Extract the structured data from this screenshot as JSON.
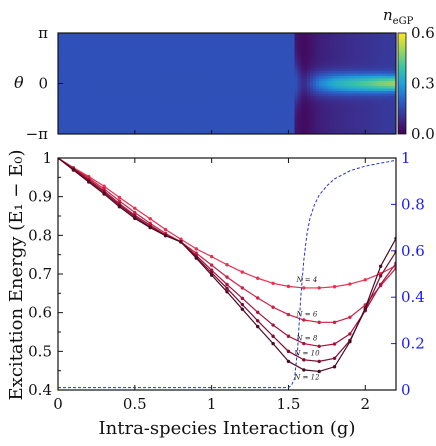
{
  "chart_data": [
    {
      "type": "heatmap",
      "ylabel": "θ",
      "yticks": [
        "π",
        "0",
        "−π"
      ],
      "colorbar_label": "n",
      "colorbar_label_sub": "eGP",
      "colorbar_ticks": [
        "0.6",
        "0.3",
        "0.0"
      ],
      "colorbar_range": [
        0,
        0.6
      ],
      "x_range": [
        0,
        2.2
      ],
      "profile": {
        "g": [
          0,
          1.55,
          1.6,
          1.7,
          1.8,
          1.9,
          2.0,
          2.1,
          2.2
        ],
        "peak_density": [
          0.17,
          0.17,
          0.08,
          0.25,
          0.33,
          0.38,
          0.42,
          0.47,
          0.5
        ],
        "width_fraction": [
          0.3,
          0.3,
          0.18,
          0.16,
          0.15,
          0.14,
          0.13,
          0.12,
          0.11
        ]
      },
      "colors": {
        "cmap": [
          "#440154",
          "#3b2f8f",
          "#2a60c9",
          "#1fa2d8",
          "#3bc5a3",
          "#9ed65a",
          "#fde725"
        ]
      }
    },
    {
      "type": "line",
      "xlabel": "Intra-species Interaction (g)",
      "ylabel": "Excitation Energy (E₁ − E₀)",
      "xlim": [
        0,
        2.2
      ],
      "ylim": [
        0.4,
        1.0
      ],
      "xticks": [
        "0",
        "0.5",
        "1",
        "1.5",
        "2"
      ],
      "yticks_left": [
        "0.4",
        "0.45",
        "0.5",
        "0.55",
        "0.6",
        "0.65",
        "0.7",
        "0.75",
        "0.8",
        "0.85",
        "0.9",
        "0.95",
        "1"
      ],
      "yticks_left_shown": [
        "0.4",
        "0.5",
        "0.6",
        "0.7",
        "0.8",
        "0.9",
        "1"
      ],
      "right_axis": {
        "ylim": [
          0,
          1
        ],
        "yticks": [
          "0",
          "0.2",
          "0.4",
          "0.6",
          "0.8",
          "1"
        ],
        "color": "#1a1aff"
      },
      "x": [
        0,
        0.1,
        0.2,
        0.3,
        0.4,
        0.5,
        0.6,
        0.7,
        0.8,
        0.9,
        1.0,
        1.1,
        1.2,
        1.3,
        1.4,
        1.5,
        1.6,
        1.7,
        1.8,
        1.9,
        2.0,
        2.1,
        2.2
      ],
      "series": [
        {
          "name": "N = 4",
          "color": "#e8304f",
          "values": [
            1.0,
            0.975,
            0.952,
            0.927,
            0.898,
            0.87,
            0.843,
            0.815,
            0.79,
            0.765,
            0.745,
            0.724,
            0.705,
            0.689,
            0.676,
            0.668,
            0.664,
            0.664,
            0.667,
            0.674,
            0.685,
            0.701,
            0.722
          ]
        },
        {
          "name": "N = 6",
          "color": "#cc2145",
          "values": [
            1.0,
            0.974,
            0.948,
            0.92,
            0.889,
            0.859,
            0.831,
            0.805,
            0.783,
            0.754,
            0.723,
            0.692,
            0.664,
            0.638,
            0.614,
            0.595,
            0.581,
            0.575,
            0.575,
            0.588,
            0.62,
            0.67,
            0.715
          ]
        },
        {
          "name": "N = 8",
          "color": "#a8123a",
          "values": [
            1.0,
            0.972,
            0.944,
            0.915,
            0.882,
            0.852,
            0.826,
            0.801,
            0.783,
            0.748,
            0.71,
            0.673,
            0.637,
            0.601,
            0.568,
            0.539,
            0.52,
            0.513,
            0.519,
            0.545,
            0.605,
            0.673,
            0.728
          ]
        },
        {
          "name": "N = 10",
          "color": "#7d0c33",
          "values": [
            1.0,
            0.971,
            0.941,
            0.911,
            0.878,
            0.848,
            0.822,
            0.8,
            0.783,
            0.744,
            0.703,
            0.663,
            0.621,
            0.579,
            0.539,
            0.5,
            0.478,
            0.474,
            0.482,
            0.528,
            0.608,
            0.695,
            0.758
          ]
        },
        {
          "name": "N = 12",
          "color": "#4a0a22",
          "values": [
            1.0,
            0.969,
            0.938,
            0.907,
            0.874,
            0.844,
            0.82,
            0.799,
            0.783,
            0.741,
            0.697,
            0.654,
            0.609,
            0.564,
            0.52,
            0.474,
            0.452,
            0.448,
            0.46,
            0.525,
            0.612,
            0.72,
            0.792
          ]
        }
      ],
      "dashed_series": {
        "axis": "right",
        "color": "#2233cc",
        "x": [
          0,
          1.5,
          1.52,
          1.54,
          1.56,
          1.58,
          1.6,
          1.62,
          1.64,
          1.67,
          1.7,
          1.75,
          1.8,
          1.9,
          2.0,
          2.1,
          2.2
        ],
        "values": [
          0.01,
          0.01,
          0.02,
          0.05,
          0.18,
          0.4,
          0.56,
          0.67,
          0.74,
          0.8,
          0.84,
          0.88,
          0.91,
          0.945,
          0.965,
          0.978,
          0.99
        ]
      },
      "series_labels": [
        "N = 4",
        "N = 6",
        "N = 8",
        "N = 10",
        "N = 12"
      ]
    }
  ]
}
